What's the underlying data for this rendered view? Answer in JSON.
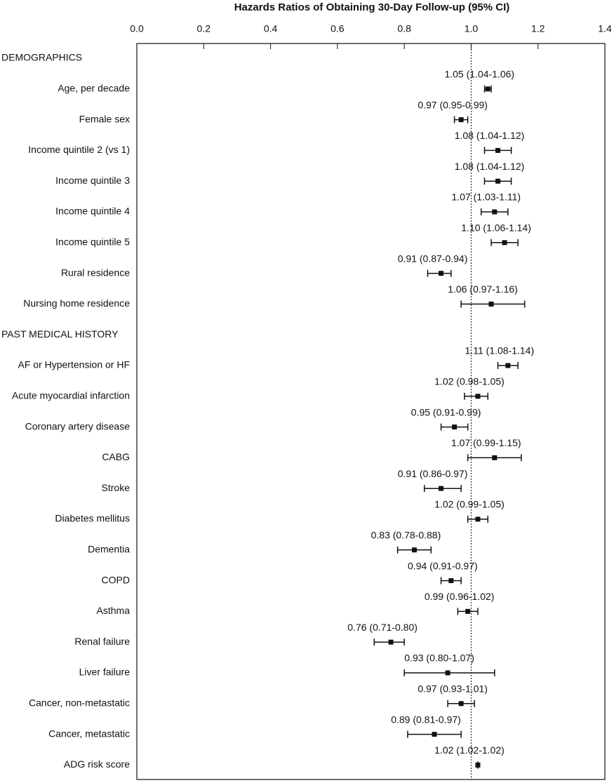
{
  "chart_data": {
    "type": "forest",
    "title": "Hazards Ratios of Obtaining 30-Day Follow-up (95% CI)",
    "categories": [
      "DEMOGRAPHICS",
      "Age, per decade",
      "Female sex",
      "Income quintile 2 (vs 1)",
      "Income quintile 3",
      "Income quintile 4",
      "Income quintile 5",
      "Rural residence",
      "Nursing home residence",
      "PAST MEDICAL HISTORY",
      "AF or Hypertension or HF",
      "Acute myocardial infarction",
      "Coronary artery disease",
      "CABG",
      "Stroke",
      "Diabetes mellitus",
      "Dementia",
      "COPD",
      "Asthma",
      "Renal failure",
      "Liver failure",
      "Cancer, non-metastatic",
      "Cancer, metastatic",
      "ADG risk score"
    ],
    "values": [
      null,
      1.05,
      0.97,
      1.08,
      1.08,
      1.07,
      1.1,
      0.91,
      1.06,
      null,
      1.11,
      1.02,
      0.95,
      1.07,
      0.91,
      1.02,
      0.83,
      0.94,
      0.99,
      0.76,
      0.93,
      0.97,
      0.89,
      1.02
    ],
    "lower": [
      null,
      1.04,
      0.95,
      1.04,
      1.04,
      1.03,
      1.06,
      0.87,
      0.97,
      null,
      1.08,
      0.98,
      0.91,
      0.99,
      0.86,
      0.99,
      0.78,
      0.91,
      0.96,
      0.71,
      0.8,
      0.93,
      0.81,
      1.02
    ],
    "upper": [
      null,
      1.06,
      0.99,
      1.12,
      1.12,
      1.11,
      1.14,
      0.94,
      1.16,
      null,
      1.14,
      1.05,
      0.99,
      1.15,
      0.97,
      1.05,
      0.88,
      0.97,
      1.02,
      0.8,
      1.07,
      1.01,
      0.97,
      1.02
    ],
    "value_labels": [
      null,
      "1.05 (1.04-1.06)",
      "0.97 (0.95-0.99)",
      "1.08 (1.04-1.12)",
      "1.08 (1.04-1.12)",
      "1.07 (1.03-1.11)",
      "1.10 (1.06-1.14)",
      "0.91 (0.87-0.94)",
      "1.06 (0.97-1.16)",
      null,
      "1.11 (1.08-1.14)",
      "1.02 (0.98-1.05)",
      "0.95 (0.91-0.99)",
      "1.07 (0.99-1.15)",
      "0.91 (0.86-0.97)",
      "1.02 (0.99-1.05)",
      "0.83 (0.78-0.88)",
      "0.94 (0.91-0.97)",
      "0.99 (0.96-1.02)",
      "0.76 (0.71-0.80)",
      "0.93 (0.80-1.07)",
      "0.97 (0.93-1.01)",
      "0.89 (0.81-0.97)",
      "1.02 (1.02-1.02)"
    ],
    "xlim": [
      0,
      1.4
    ],
    "xticks": [
      {
        "value": 0,
        "label": "0.0"
      },
      0.2,
      0.4,
      0.6,
      0.8,
      {
        "value": 1,
        "label": "1.0"
      },
      1.2,
      1.4
    ],
    "reference_line": 1,
    "color": "#111111"
  }
}
